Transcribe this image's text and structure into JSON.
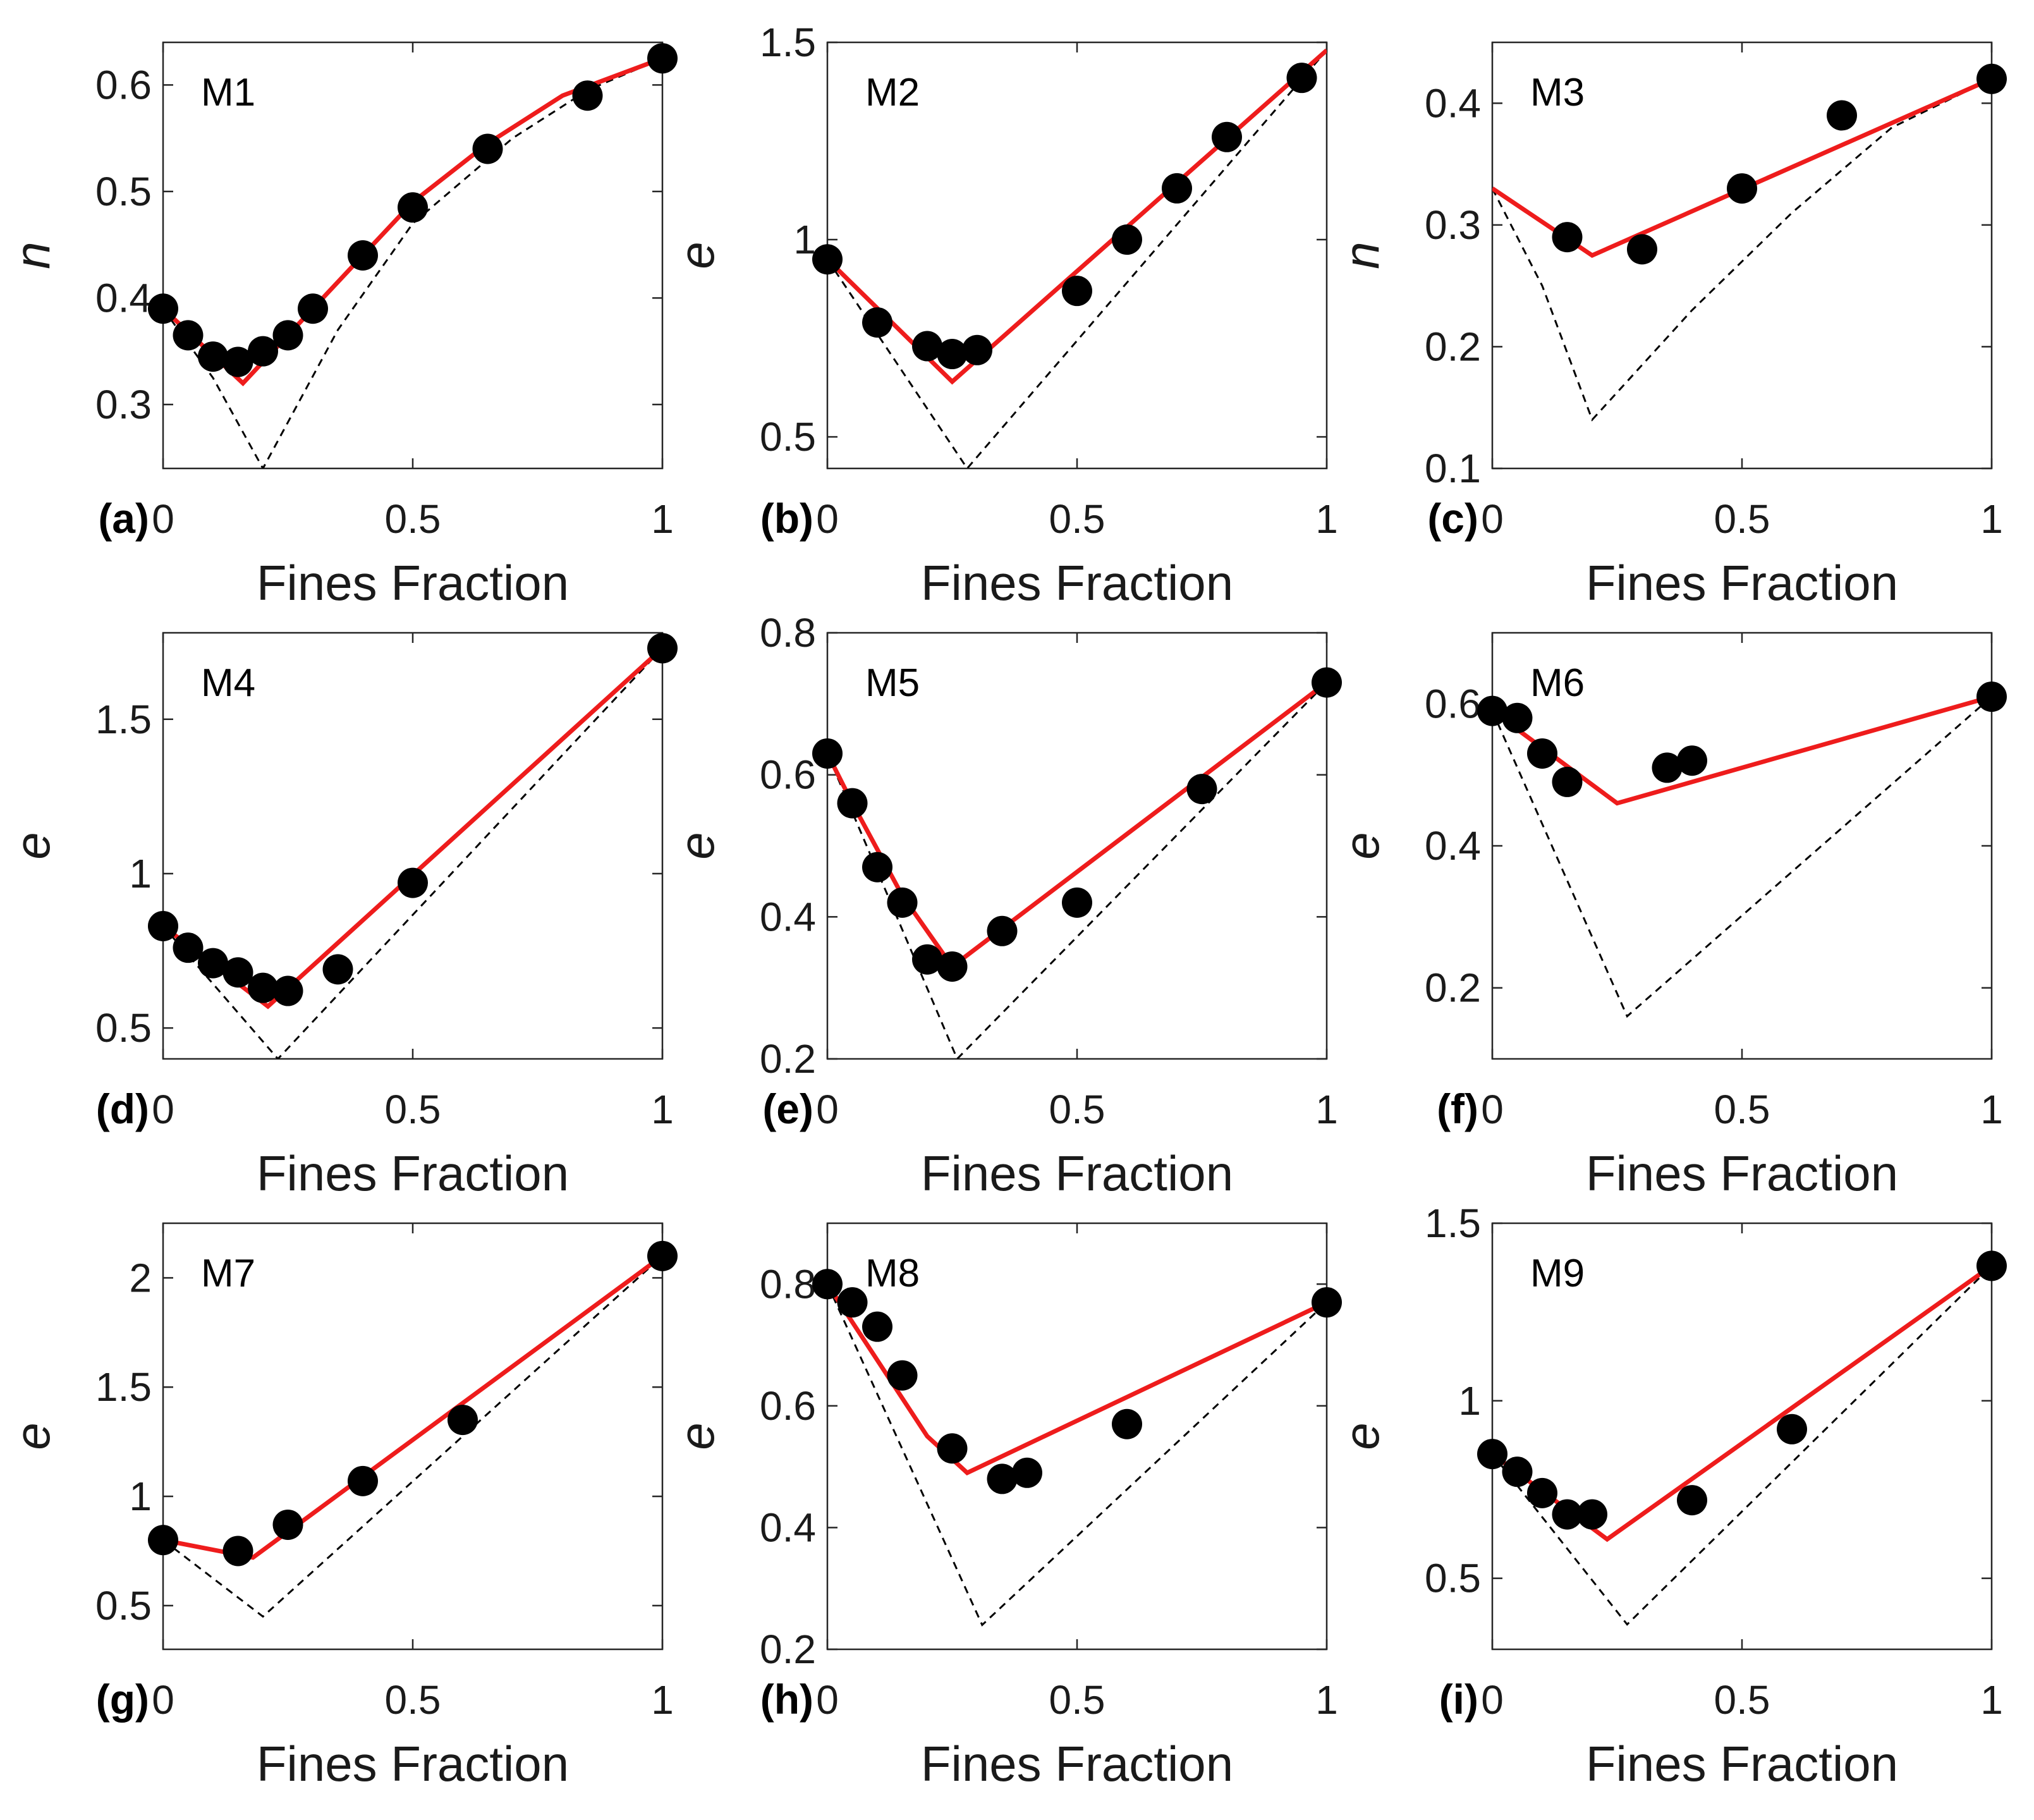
{
  "chart_data": [
    {
      "panel_label": "(a)",
      "inset_label": "M1",
      "type": "scatter",
      "ylabel": "n",
      "ylabel_italic": true,
      "xlabel": "Fines Fraction",
      "xlim": [
        0,
        1
      ],
      "ylim": [
        0.24,
        0.64
      ],
      "xticks": [
        "0",
        "0.5",
        "1"
      ],
      "yticks": [
        "0.3",
        "0.4",
        "0.5",
        "0.6"
      ],
      "points": {
        "x": [
          0,
          0.05,
          0.1,
          0.15,
          0.2,
          0.25,
          0.3,
          0.4,
          0.5,
          0.65,
          0.85,
          1.0
        ],
        "y": [
          0.39,
          0.365,
          0.345,
          0.34,
          0.35,
          0.365,
          0.39,
          0.44,
          0.485,
          0.54,
          0.59,
          0.625
        ]
      },
      "model_line": {
        "x": [
          0,
          0.16,
          0.28,
          0.4,
          0.5,
          0.65,
          0.8,
          1.0
        ],
        "y": [
          0.39,
          0.32,
          0.38,
          0.44,
          0.49,
          0.545,
          0.59,
          0.625
        ]
      },
      "reference_line": {
        "x": [
          0,
          0.1,
          0.2,
          0.35,
          0.5,
          0.7,
          0.85,
          1.0
        ],
        "y": [
          0.39,
          0.325,
          0.24,
          0.37,
          0.47,
          0.55,
          0.595,
          0.625
        ]
      }
    },
    {
      "panel_label": "(b)",
      "inset_label": "M2",
      "type": "scatter",
      "ylabel": "e",
      "ylabel_italic": true,
      "xlabel": "Fines Fraction",
      "xlim": [
        0,
        1
      ],
      "ylim": [
        0.42,
        1.5
      ],
      "xticks": [
        "0",
        "0.5",
        "1"
      ],
      "yticks": [
        "0.5",
        "1",
        "1.5"
      ],
      "points": {
        "x": [
          0,
          0.1,
          0.2,
          0.25,
          0.3,
          0.5,
          0.6,
          0.7,
          0.8,
          0.95
        ],
        "y": [
          0.95,
          0.79,
          0.73,
          0.71,
          0.72,
          0.87,
          1.0,
          1.13,
          1.26,
          1.41
        ]
      },
      "model_line": {
        "x": [
          0,
          0.25,
          1.0
        ],
        "y": [
          0.95,
          0.64,
          1.48
        ]
      },
      "reference_line": {
        "x": [
          0,
          0.28,
          1.0
        ],
        "y": [
          0.95,
          0.42,
          1.48
        ]
      }
    },
    {
      "panel_label": "(c)",
      "inset_label": "M3",
      "type": "scatter",
      "ylabel": "n",
      "ylabel_italic": true,
      "xlabel": "Fines Fraction",
      "xlim": [
        0,
        1
      ],
      "ylim": [
        0.1,
        0.45
      ],
      "xticks": [
        "0",
        "0.5",
        "1"
      ],
      "yticks": [
        "0.1",
        "0.2",
        "0.3",
        "0.4"
      ],
      "points": {
        "x": [
          0.15,
          0.3,
          0.5,
          0.7,
          1.0
        ],
        "y": [
          0.29,
          0.28,
          0.33,
          0.39,
          0.42
        ]
      },
      "model_line": {
        "x": [
          0,
          0.2,
          1.0
        ],
        "y": [
          0.33,
          0.275,
          0.42
        ]
      },
      "reference_line": {
        "x": [
          0,
          0.1,
          0.2,
          0.4,
          0.6,
          0.8,
          1.0
        ],
        "y": [
          0.33,
          0.25,
          0.14,
          0.23,
          0.31,
          0.38,
          0.42
        ]
      }
    },
    {
      "panel_label": "(d)",
      "inset_label": "M4",
      "type": "scatter",
      "ylabel": "e",
      "ylabel_italic": true,
      "xlabel": "Fines Fraction",
      "xlim": [
        0,
        1
      ],
      "ylim": [
        0.4,
        1.78
      ],
      "xticks": [
        "0",
        "0.5",
        "1"
      ],
      "yticks": [
        "0.5",
        "1",
        "1.5"
      ],
      "points": {
        "x": [
          0,
          0.05,
          0.1,
          0.15,
          0.2,
          0.25,
          0.35,
          0.5,
          1.0
        ],
        "y": [
          0.83,
          0.76,
          0.71,
          0.68,
          0.63,
          0.62,
          0.69,
          0.97,
          1.73
        ]
      },
      "model_line": {
        "x": [
          0,
          0.21,
          1.0
        ],
        "y": [
          0.83,
          0.57,
          1.73
        ]
      },
      "reference_line": {
        "x": [
          0,
          0.23,
          1.0
        ],
        "y": [
          0.83,
          0.4,
          1.73
        ]
      }
    },
    {
      "panel_label": "(e)",
      "inset_label": "M5",
      "type": "scatter",
      "ylabel": "e",
      "ylabel_italic": true,
      "xlabel": "Fines Fraction",
      "xlim": [
        0,
        1
      ],
      "ylim": [
        0.2,
        0.8
      ],
      "xticks": [
        "0",
        "0.5",
        "1"
      ],
      "yticks": [
        "0.2",
        "0.4",
        "0.6",
        "0.8"
      ],
      "points": {
        "x": [
          0,
          0.05,
          0.1,
          0.15,
          0.2,
          0.25,
          0.35,
          0.5,
          0.75,
          1.0
        ],
        "y": [
          0.63,
          0.56,
          0.47,
          0.42,
          0.34,
          0.33,
          0.38,
          0.42,
          0.58,
          0.73
        ]
      },
      "model_line": {
        "x": [
          0,
          0.05,
          0.15,
          0.25,
          1.0
        ],
        "y": [
          0.63,
          0.56,
          0.43,
          0.33,
          0.73
        ]
      },
      "reference_line": {
        "x": [
          0,
          0.26,
          1.0
        ],
        "y": [
          0.63,
          0.2,
          0.73
        ]
      }
    },
    {
      "panel_label": "(f)",
      "inset_label": "M6",
      "type": "scatter",
      "ylabel": "e",
      "ylabel_italic": true,
      "xlabel": "Fines Fraction",
      "xlim": [
        0,
        1
      ],
      "ylim": [
        0.1,
        0.7
      ],
      "xticks": [
        "0",
        "0.5",
        "1"
      ],
      "yticks": [
        "0.2",
        "0.4",
        "0.6"
      ],
      "points": {
        "x": [
          0,
          0.05,
          0.1,
          0.15,
          0.35,
          0.4,
          1.0
        ],
        "y": [
          0.59,
          0.58,
          0.53,
          0.49,
          0.51,
          0.52,
          0.61
        ]
      },
      "model_line": {
        "x": [
          0,
          0.25,
          1.0
        ],
        "y": [
          0.59,
          0.46,
          0.61
        ]
      },
      "reference_line": {
        "x": [
          0,
          0.27,
          1.0
        ],
        "y": [
          0.59,
          0.16,
          0.61
        ]
      }
    },
    {
      "panel_label": "(g)",
      "inset_label": "M7",
      "type": "scatter",
      "ylabel": "e",
      "ylabel_italic": true,
      "xlabel": "Fines Fraction",
      "xlim": [
        0,
        1
      ],
      "ylim": [
        0.3,
        2.25
      ],
      "xticks": [
        "0",
        "0.5",
        "1"
      ],
      "yticks": [
        "0.5",
        "1",
        "1.5",
        "2"
      ],
      "points": {
        "x": [
          0,
          0.15,
          0.25,
          0.4,
          0.6,
          1.0
        ],
        "y": [
          0.8,
          0.75,
          0.87,
          1.07,
          1.35,
          2.1
        ]
      },
      "model_line": {
        "x": [
          0,
          0.18,
          1.0
        ],
        "y": [
          0.8,
          0.72,
          2.1
        ]
      },
      "reference_line": {
        "x": [
          0,
          0.2,
          1.0
        ],
        "y": [
          0.8,
          0.45,
          2.1
        ]
      }
    },
    {
      "panel_label": "(h)",
      "inset_label": "M8",
      "type": "scatter",
      "ylabel": "e",
      "ylabel_italic": true,
      "xlabel": "Fines Fraction",
      "xlim": [
        0,
        1
      ],
      "ylim": [
        0.2,
        0.9
      ],
      "xticks": [
        "0",
        "0.5",
        "1"
      ],
      "yticks": [
        "0.2",
        "0.4",
        "0.6",
        "0.8"
      ],
      "points": {
        "x": [
          0,
          0.05,
          0.1,
          0.15,
          0.25,
          0.35,
          0.4,
          0.6,
          1.0
        ],
        "y": [
          0.8,
          0.77,
          0.73,
          0.65,
          0.53,
          0.48,
          0.49,
          0.57,
          0.77
        ]
      },
      "model_line": {
        "x": [
          0,
          0.2,
          0.28,
          1.0
        ],
        "y": [
          0.8,
          0.55,
          0.49,
          0.77
        ]
      },
      "reference_line": {
        "x": [
          0,
          0.31,
          1.0
        ],
        "y": [
          0.8,
          0.24,
          0.77
        ]
      }
    },
    {
      "panel_label": "(i)",
      "inset_label": "M9",
      "type": "scatter",
      "ylabel": "e",
      "ylabel_italic": true,
      "xlabel": "Fines Fraction",
      "xlim": [
        0,
        1
      ],
      "ylim": [
        0.3,
        1.5
      ],
      "xticks": [
        "0",
        "0.5",
        "1"
      ],
      "yticks": [
        "0.5",
        "1",
        "1.5"
      ],
      "points": {
        "x": [
          0,
          0.05,
          0.1,
          0.15,
          0.2,
          0.4,
          0.6,
          1.0
        ],
        "y": [
          0.85,
          0.8,
          0.74,
          0.68,
          0.68,
          0.72,
          0.92,
          1.38
        ]
      },
      "model_line": {
        "x": [
          0,
          0.23,
          1.0
        ],
        "y": [
          0.85,
          0.61,
          1.38
        ]
      },
      "reference_line": {
        "x": [
          0,
          0.27,
          1.0
        ],
        "y": [
          0.85,
          0.37,
          1.38
        ]
      }
    }
  ],
  "colors": {
    "model_line": "#ee1c1c",
    "reference_line": "#000000",
    "points": "#000000",
    "axes": "#262626"
  }
}
